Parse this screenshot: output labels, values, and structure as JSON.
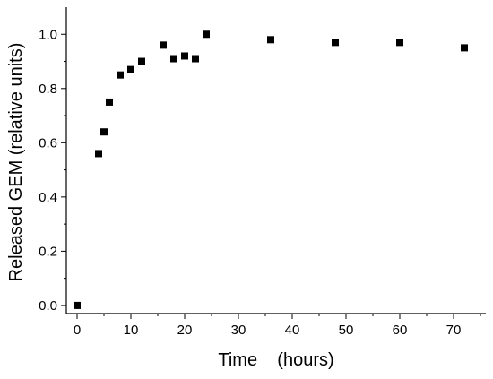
{
  "chart_data": {
    "type": "scatter",
    "title": "",
    "xlabel": "Time    (hours)",
    "ylabel": "Released GEM (relative units)",
    "xlim": [
      -2,
      76
    ],
    "ylim": [
      -0.03,
      1.1
    ],
    "x_ticks": [
      0,
      10,
      20,
      30,
      40,
      50,
      60,
      70
    ],
    "y_ticks": [
      0.0,
      0.2,
      0.4,
      0.6,
      0.8,
      1.0
    ],
    "x_tick_labels": [
      "0",
      "10",
      "20",
      "30",
      "40",
      "50",
      "60",
      "70"
    ],
    "y_tick_labels": [
      "0.0",
      "0.2",
      "0.4",
      "0.6",
      "0.8",
      "1.0"
    ],
    "grid": false,
    "legend": "none",
    "marker": "square",
    "marker_color": "#000000",
    "series": [
      {
        "points": [
          {
            "x": 0,
            "y": 0.0
          },
          {
            "x": 4,
            "y": 0.56
          },
          {
            "x": 5,
            "y": 0.64
          },
          {
            "x": 6,
            "y": 0.75
          },
          {
            "x": 8,
            "y": 0.85
          },
          {
            "x": 10,
            "y": 0.87
          },
          {
            "x": 12,
            "y": 0.9
          },
          {
            "x": 16,
            "y": 0.96
          },
          {
            "x": 18,
            "y": 0.91
          },
          {
            "x": 20,
            "y": 0.92
          },
          {
            "x": 22,
            "y": 0.91
          },
          {
            "x": 24,
            "y": 1.0
          },
          {
            "x": 36,
            "y": 0.98
          },
          {
            "x": 48,
            "y": 0.97
          },
          {
            "x": 60,
            "y": 0.97
          },
          {
            "x": 72,
            "y": 0.95
          }
        ]
      }
    ]
  }
}
